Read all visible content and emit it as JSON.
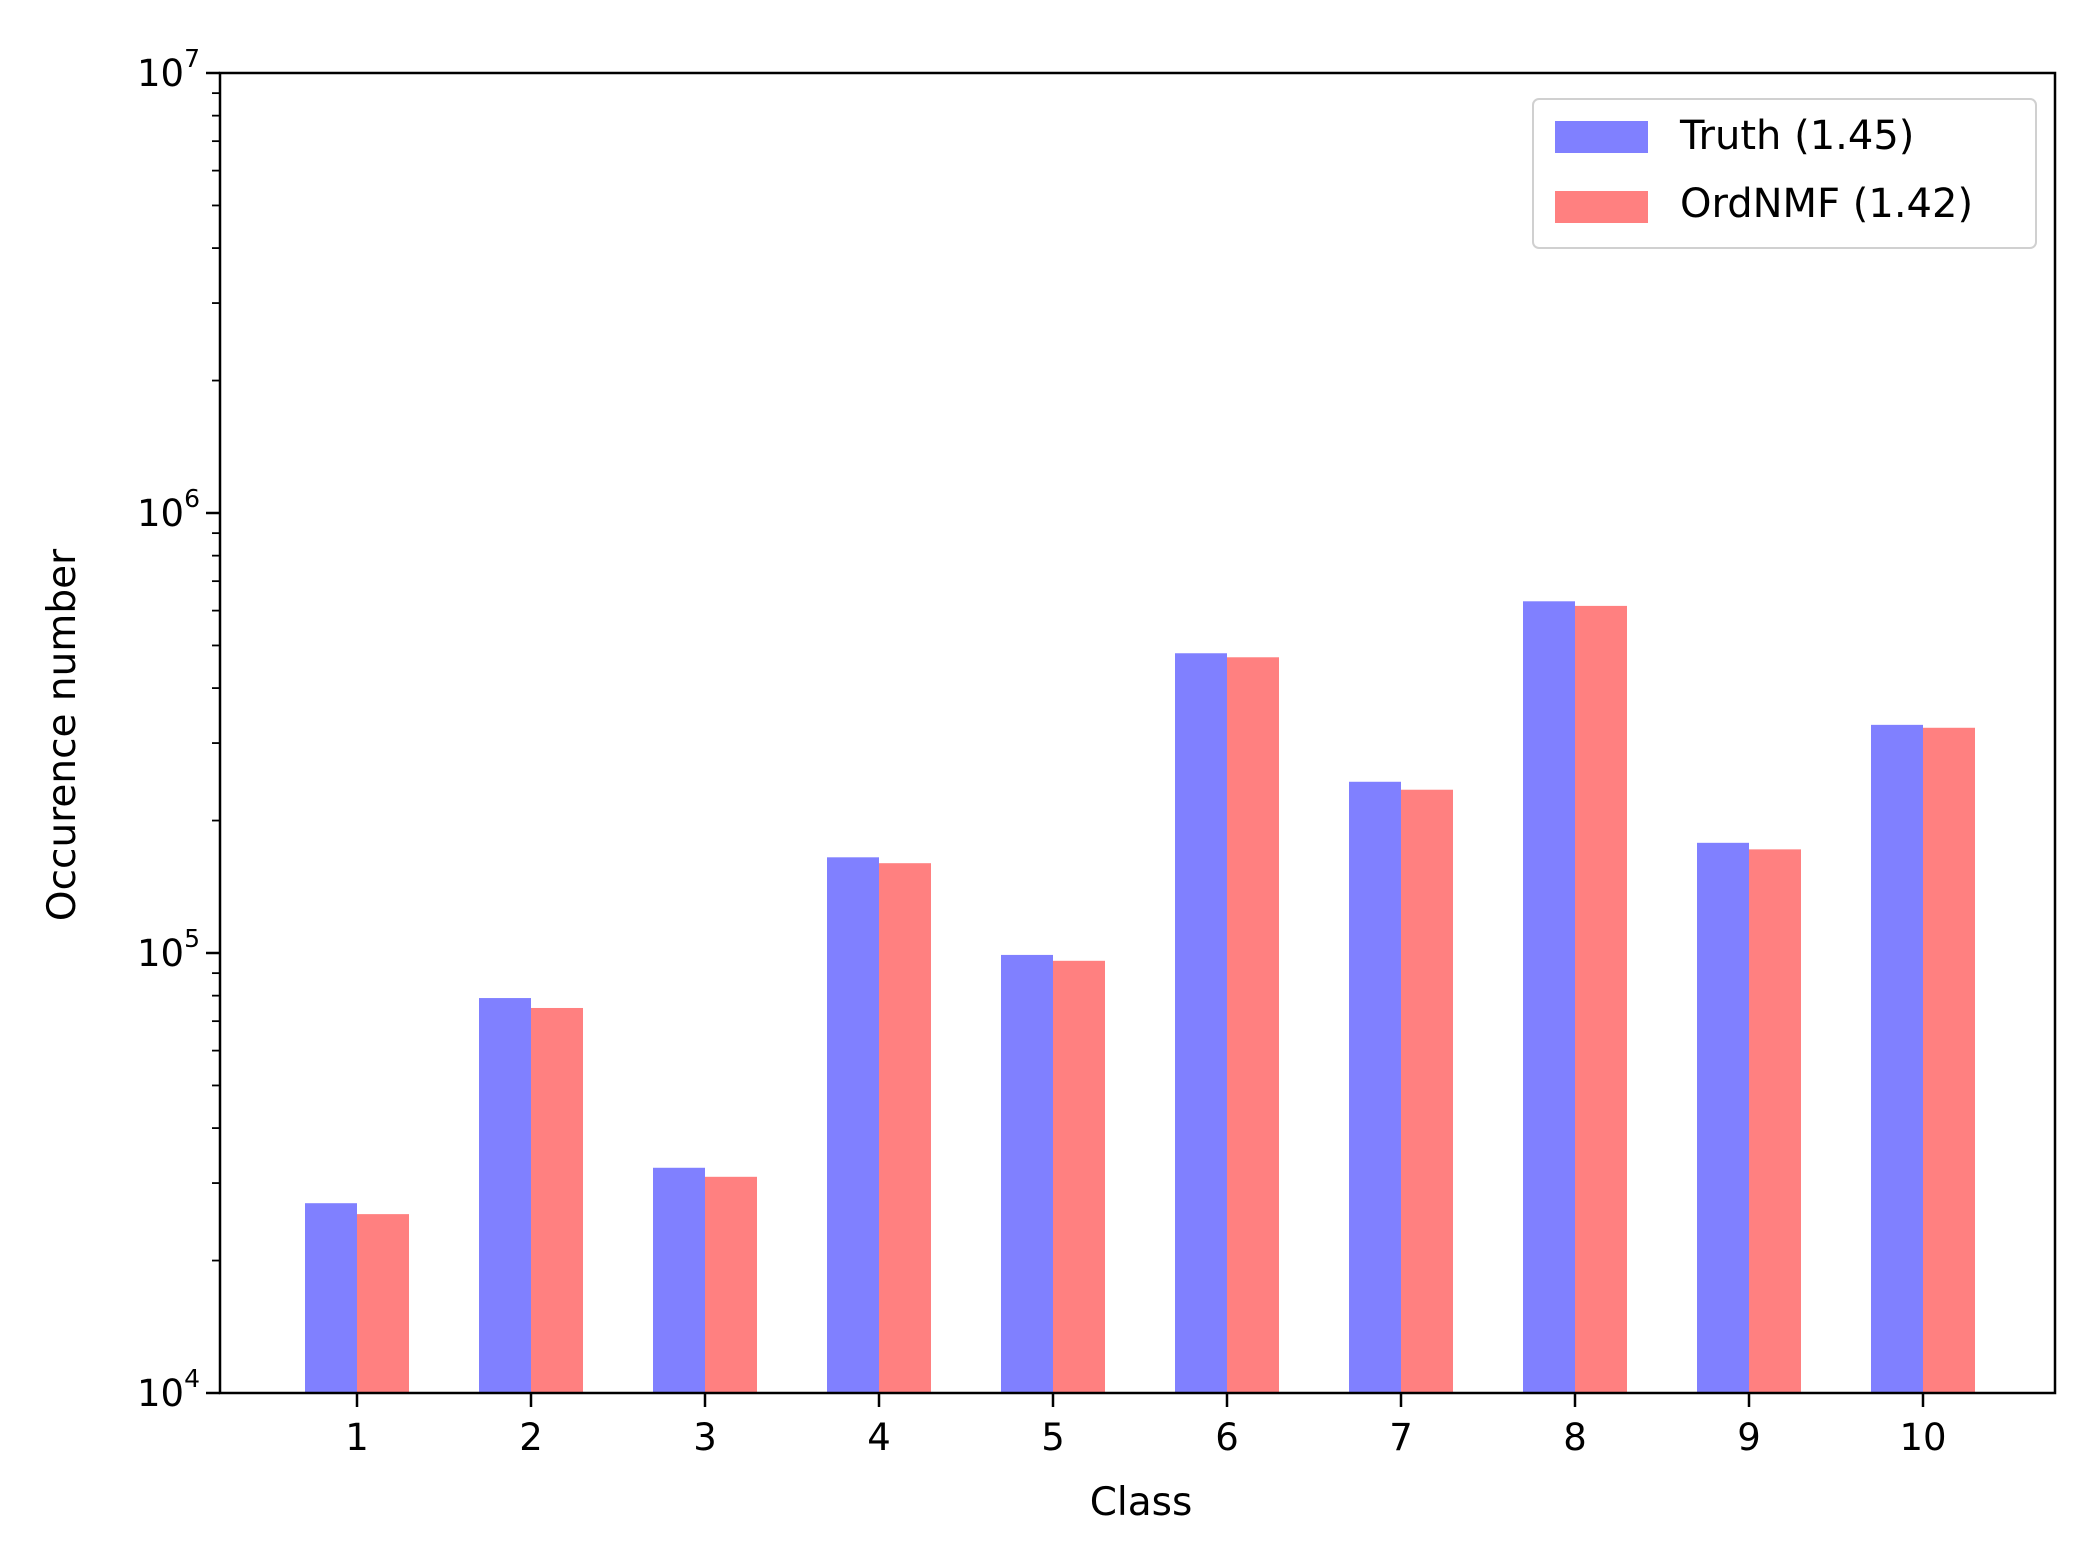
{
  "chart_data": {
    "type": "bar",
    "xlabel": "Class",
    "ylabel": "Occurence number",
    "yscale": "log",
    "ylim": [
      10000,
      10000000
    ],
    "y_ticks": [
      {
        "base": "10",
        "exp": "4",
        "value": 10000
      },
      {
        "base": "10",
        "exp": "5",
        "value": 100000
      },
      {
        "base": "10",
        "exp": "6",
        "value": 1000000
      },
      {
        "base": "10",
        "exp": "7",
        "value": 10000000
      }
    ],
    "categories": [
      "1",
      "2",
      "3",
      "4",
      "5",
      "6",
      "7",
      "8",
      "9",
      "10"
    ],
    "series": [
      {
        "name": "Truth (1.45)",
        "color": "#8080ff",
        "values": [
          27000,
          79000,
          32500,
          165000,
          99000,
          480000,
          245000,
          630000,
          178000,
          330000
        ]
      },
      {
        "name": "OrdNMF (1.42)",
        "color": "#ff8080",
        "values": [
          25500,
          75000,
          31000,
          160000,
          96000,
          470000,
          235000,
          615000,
          172000,
          325000
        ]
      }
    ],
    "legend_position": "top-right",
    "grid": false
  }
}
